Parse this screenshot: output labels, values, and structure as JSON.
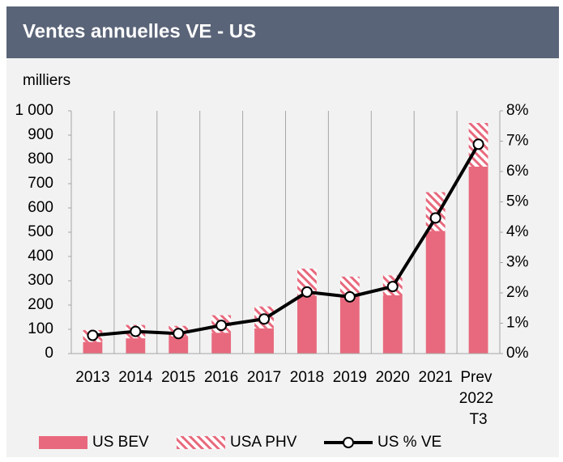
{
  "chart_data": {
    "type": "bar-line",
    "title": "Ventes annuelles VE - US",
    "y_label": "milliers",
    "categories": [
      "2013",
      "2014",
      "2015",
      "2016",
      "2017",
      "2018",
      "2019",
      "2020",
      "2021",
      "Prev 2022 T3"
    ],
    "series": [
      {
        "name": "US BEV",
        "color": "#e8697d",
        "type": "bar",
        "values": [
          48,
          63,
          71,
          86,
          104,
          238,
          240,
          240,
          505,
          770
        ]
      },
      {
        "name": "USA PHV",
        "color": "#e8697d",
        "type": "bar-hatched",
        "values": [
          49,
          55,
          43,
          72,
          90,
          112,
          77,
          82,
          160,
          180
        ]
      },
      {
        "name": "US % VE",
        "color": "#000000",
        "type": "line",
        "axis": "y2",
        "values": [
          0.6,
          0.73,
          0.66,
          0.93,
          1.14,
          2.03,
          1.87,
          2.21,
          4.47,
          6.9
        ]
      }
    ],
    "ylim": [
      0,
      1000
    ],
    "yticks": [
      0,
      100,
      200,
      300,
      400,
      500,
      600,
      700,
      800,
      900,
      {
        "value": 1000,
        "label": "1 000"
      }
    ],
    "y2lim": [
      0,
      8
    ],
    "y2ticks": [
      {
        "value": 0,
        "label": "0%"
      },
      {
        "value": 1,
        "label": "1%"
      },
      {
        "value": 2,
        "label": "2%"
      },
      {
        "value": 3,
        "label": "3%"
      },
      {
        "value": 4,
        "label": "4%"
      },
      {
        "value": 5,
        "label": "5%"
      },
      {
        "value": 6,
        "label": "6%"
      },
      {
        "value": 7,
        "label": "7%"
      },
      {
        "value": 8,
        "label": "8%"
      }
    ],
    "stacked": true,
    "legend": "bottom"
  }
}
